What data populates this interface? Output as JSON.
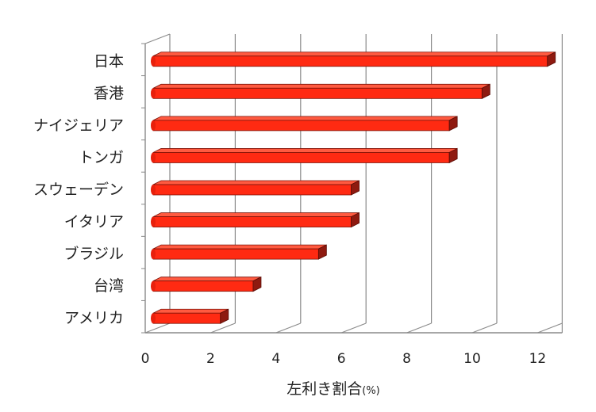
{
  "chart_data": {
    "type": "bar",
    "orientation": "horizontal",
    "style": "3d",
    "categories": [
      "日本",
      "香港",
      "ナイジェリア",
      "トンガ",
      "スウェーデン",
      "イタリア",
      "ブラジル",
      "台湾",
      "アメリカ"
    ],
    "values": [
      12.3,
      10.3,
      9.3,
      9.3,
      6.3,
      6.3,
      5.3,
      3.3,
      2.3
    ],
    "xlabel": "左利き割合",
    "xlabel_unit": "(%)",
    "xlim": [
      0,
      12
    ],
    "xticks": [
      0,
      2,
      4,
      6,
      8,
      10,
      12
    ],
    "grid": true,
    "bar_color": "#ff2a12",
    "bar_shade_color": "#8e1a10",
    "axis_color": "#8a8a8a"
  }
}
